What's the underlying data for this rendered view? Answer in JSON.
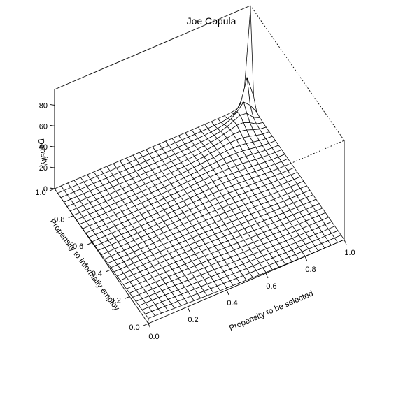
{
  "chart_data": {
    "type": "surface",
    "title": "Joe Copula",
    "xlabel": "Propensity to be selected",
    "ylabel": "Propensity to informally employ",
    "zlabel": "Density",
    "xlim": [
      0,
      1
    ],
    "ylim": [
      0,
      1
    ],
    "zlim": [
      0,
      95
    ],
    "x_ticks": [
      "0.0",
      "0.2",
      "0.4",
      "0.6",
      "0.8",
      "1.0"
    ],
    "y_ticks": [
      "0.0",
      "0.2",
      "0.4",
      "0.6",
      "0.8",
      "1.0"
    ],
    "z_ticks": [
      "0",
      "20",
      "40",
      "60",
      "80"
    ],
    "grid_n": 31,
    "peak_density": 92,
    "colors": {
      "line": "#000000",
      "face": "#ffffff",
      "background": "#ffffff"
    }
  }
}
